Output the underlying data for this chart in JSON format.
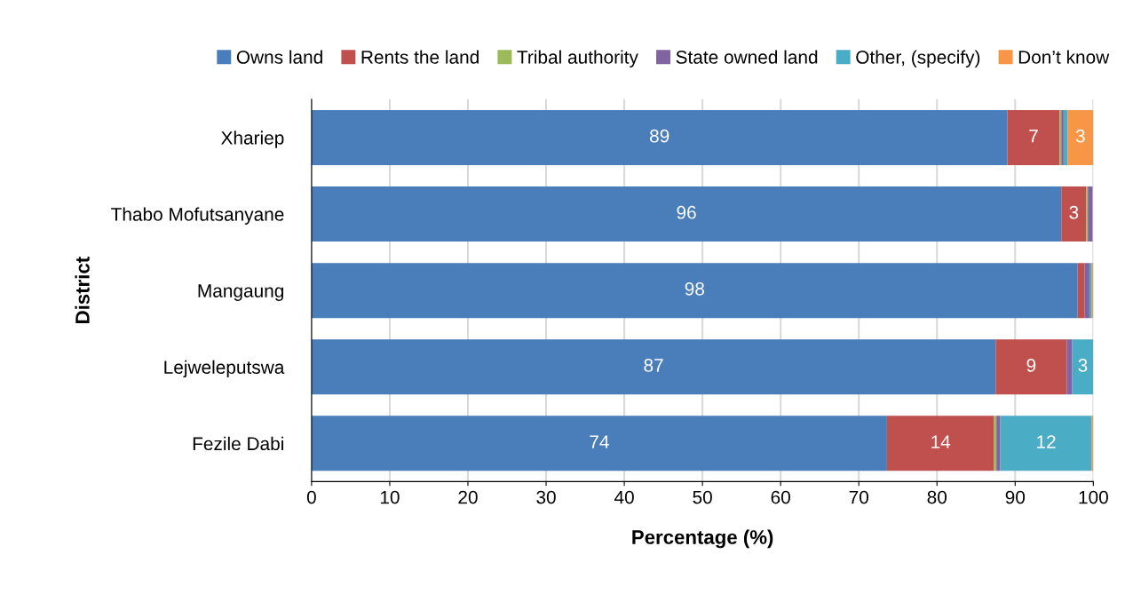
{
  "chart_data": {
    "type": "bar",
    "orientation": "horizontal",
    "stacked": true,
    "xlabel": "Percentage (%)",
    "ylabel": "District",
    "categories": [
      "Xhariep",
      "Thabo Mofutsanyane",
      "Mangaung",
      "Lejweleputswa",
      "Fezile Dabi"
    ],
    "xlim": [
      0,
      100
    ],
    "xticks": [
      0,
      10,
      20,
      30,
      40,
      50,
      60,
      70,
      80,
      90,
      100
    ],
    "grid": "x",
    "legend": "top",
    "series": [
      {
        "name": "Owns land",
        "color": "#4a7ebb",
        "values": [
          89.0,
          95.9,
          98.0,
          87.5,
          73.6
        ],
        "value_labels": [
          "89",
          "96",
          "98",
          "87",
          "74"
        ]
      },
      {
        "name": "Rents the land",
        "color": "#c0504d",
        "values": [
          6.7,
          3.2,
          0.9,
          9.1,
          13.7
        ],
        "value_labels": [
          "7",
          "3",
          null,
          "9",
          "14"
        ]
      },
      {
        "name": "Tribal authority",
        "color": "#9bbb59",
        "values": [
          0.2,
          0.2,
          0,
          0,
          0.3
        ],
        "value_labels": [
          null,
          null,
          null,
          null,
          null
        ]
      },
      {
        "name": "State owned land",
        "color": "#8064a2",
        "values": [
          0.3,
          0.6,
          0.6,
          0.7,
          0.5
        ],
        "value_labels": [
          null,
          null,
          null,
          null,
          null
        ]
      },
      {
        "name": "Other, (specify)",
        "color": "#4bacc6",
        "values": [
          0.5,
          null,
          0.3,
          2.7,
          11.7
        ],
        "value_labels": [
          null,
          null,
          null,
          "3",
          "12"
        ]
      },
      {
        "name": "Don’t know",
        "color": "#f79646",
        "values": [
          3.3,
          0,
          0.2,
          0,
          0.2
        ],
        "value_labels": [
          "3",
          null,
          null,
          null,
          null
        ]
      }
    ]
  }
}
